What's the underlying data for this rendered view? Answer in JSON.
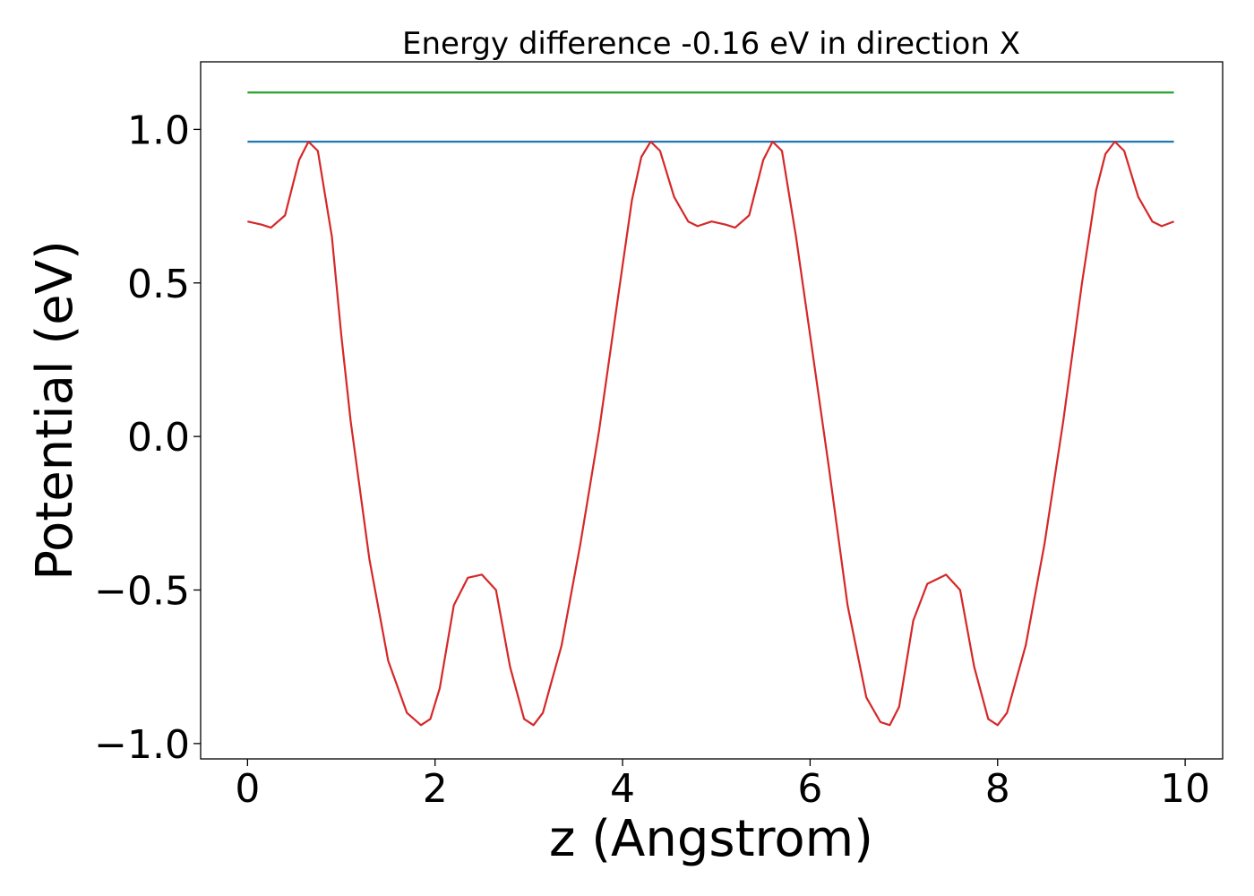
{
  "chart_data": {
    "type": "line",
    "title": "Energy difference -0.16 eV in direction X",
    "xlabel": "z (Angstrom)",
    "ylabel": "Potential (eV)",
    "xlim": [
      -0.5,
      10.4
    ],
    "ylim": [
      -1.05,
      1.22
    ],
    "grid": false,
    "xticks": [
      0,
      2,
      4,
      6,
      8,
      10
    ],
    "xtick_labels": [
      "0",
      "2",
      "4",
      "6",
      "8",
      "10"
    ],
    "yticks": [
      1.0,
      0.5,
      0.0,
      -0.5,
      -1.0
    ],
    "ytick_labels": [
      "1.0",
      "0.5",
      "0.0",
      "−0.5",
      "−1.0"
    ],
    "series": [
      {
        "color": "#2ca02c",
        "x": [
          0.0,
          9.88
        ],
        "y": [
          1.12,
          1.12
        ]
      },
      {
        "color": "#1f77b4",
        "x": [
          0.0,
          9.88
        ],
        "y": [
          0.96,
          0.96
        ]
      },
      {
        "color": "#d62728",
        "x": [
          0.0,
          0.15,
          0.25,
          0.4,
          0.55,
          0.65,
          0.75,
          0.9,
          1.0,
          1.1,
          1.3,
          1.5,
          1.7,
          1.85,
          1.95,
          2.05,
          2.2,
          2.35,
          2.5,
          2.65,
          2.8,
          2.95,
          3.05,
          3.15,
          3.35,
          3.55,
          3.75,
          3.95,
          4.1,
          4.2,
          4.3,
          4.4,
          4.55,
          4.7,
          4.8,
          4.95,
          5.1,
          5.2,
          5.35,
          5.5,
          5.6,
          5.7,
          5.85,
          6.0,
          6.2,
          6.4,
          6.6,
          6.75,
          6.85,
          6.95,
          7.1,
          7.25,
          7.45,
          7.6,
          7.75,
          7.9,
          8.0,
          8.1,
          8.3,
          8.5,
          8.7,
          8.9,
          9.05,
          9.15,
          9.25,
          9.35,
          9.5,
          9.65,
          9.75,
          9.88
        ],
        "y": [
          0.7,
          0.69,
          0.68,
          0.72,
          0.9,
          0.96,
          0.93,
          0.65,
          0.33,
          0.05,
          -0.4,
          -0.73,
          -0.9,
          -0.94,
          -0.92,
          -0.82,
          -0.55,
          -0.46,
          -0.45,
          -0.5,
          -0.75,
          -0.92,
          -0.94,
          -0.9,
          -0.68,
          -0.35,
          0.02,
          0.45,
          0.77,
          0.91,
          0.96,
          0.93,
          0.78,
          0.7,
          0.685,
          0.7,
          0.69,
          0.68,
          0.72,
          0.9,
          0.96,
          0.93,
          0.65,
          0.33,
          -0.1,
          -0.55,
          -0.85,
          -0.93,
          -0.94,
          -0.88,
          -0.6,
          -0.48,
          -0.45,
          -0.5,
          -0.75,
          -0.92,
          -0.94,
          -0.9,
          -0.68,
          -0.35,
          0.05,
          0.5,
          0.8,
          0.92,
          0.96,
          0.93,
          0.78,
          0.7,
          0.685,
          0.7
        ]
      }
    ]
  }
}
